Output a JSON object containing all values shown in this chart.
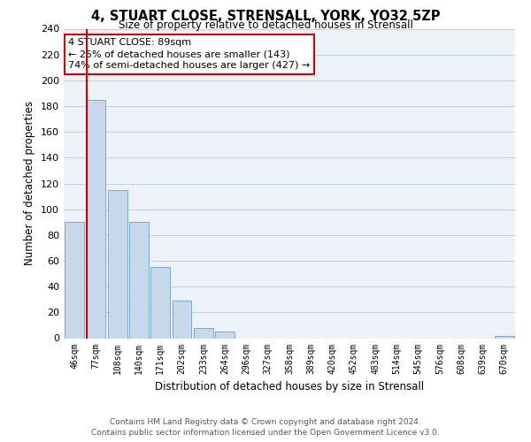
{
  "title": "4, STUART CLOSE, STRENSALL, YORK, YO32 5ZP",
  "subtitle": "Size of property relative to detached houses in Strensall",
  "xlabel": "Distribution of detached houses by size in Strensall",
  "ylabel": "Number of detached properties",
  "bar_labels": [
    "46sqm",
    "77sqm",
    "108sqm",
    "140sqm",
    "171sqm",
    "202sqm",
    "233sqm",
    "264sqm",
    "296sqm",
    "327sqm",
    "358sqm",
    "389sqm",
    "420sqm",
    "452sqm",
    "483sqm",
    "514sqm",
    "545sqm",
    "576sqm",
    "608sqm",
    "639sqm",
    "670sqm"
  ],
  "bar_values": [
    90,
    185,
    115,
    90,
    55,
    29,
    8,
    5,
    0,
    0,
    0,
    0,
    0,
    0,
    0,
    0,
    0,
    0,
    0,
    0,
    2
  ],
  "bar_color": "#c8d8ec",
  "bar_edge_color": "#7aaad0",
  "vline_x_idx": 1,
  "vline_color": "#cc0000",
  "ylim": [
    0,
    240
  ],
  "yticks": [
    0,
    20,
    40,
    60,
    80,
    100,
    120,
    140,
    160,
    180,
    200,
    220,
    240
  ],
  "ann_line1": "4 STUART CLOSE: 89sqm",
  "ann_line2": "← 25% of detached houses are smaller (143)",
  "ann_line3": "74% of semi-detached houses are larger (427) →",
  "footer_line1": "Contains HM Land Registry data © Crown copyright and database right 2024.",
  "footer_line2": "Contains public sector information licensed under the Open Government Licence v3.0.",
  "background_color": "#ffffff",
  "plot_bg_color": "#edf2f9",
  "grid_color": "#c0cfe0"
}
